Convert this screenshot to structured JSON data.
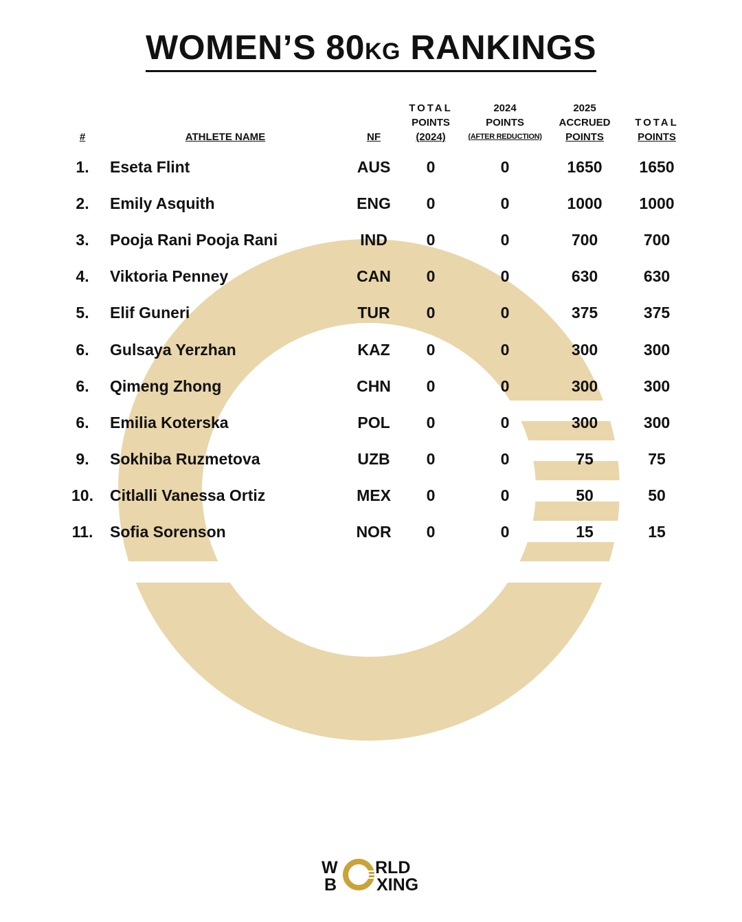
{
  "title": {
    "main": "WOMEN’S 80",
    "unit": "KG",
    "rest": " RANKINGS"
  },
  "headers": {
    "rank": "#",
    "athlete": "ATHLETE NAME",
    "nf": "NF",
    "total2024": [
      "TOTAL",
      "POINTS",
      "(2024)"
    ],
    "points2024": [
      "2024",
      "POINTS",
      "(AFTER REDUCTION)"
    ],
    "accrued2025": [
      "2025",
      "ACCRUED",
      "POINTS"
    ],
    "total": [
      "TOTAL",
      "POINTS"
    ]
  },
  "rows": [
    {
      "rank": "1.",
      "name": "Eseta Flint",
      "nf": "AUS",
      "total2024": "0",
      "points2024": "0",
      "accrued2025": "1650",
      "total": "1650"
    },
    {
      "rank": "2.",
      "name": "Emily Asquith",
      "nf": "ENG",
      "total2024": "0",
      "points2024": "0",
      "accrued2025": "1000",
      "total": "1000"
    },
    {
      "rank": "3.",
      "name": "Pooja Rani Pooja Rani",
      "nf": "IND",
      "total2024": "0",
      "points2024": "0",
      "accrued2025": "700",
      "total": "700"
    },
    {
      "rank": "4.",
      "name": "Viktoria Penney",
      "nf": "CAN",
      "total2024": "0",
      "points2024": "0",
      "accrued2025": "630",
      "total": "630"
    },
    {
      "rank": "5.",
      "name": "Elif Guneri",
      "nf": "TUR",
      "total2024": "0",
      "points2024": "0",
      "accrued2025": "375",
      "total": "375"
    },
    {
      "rank": "6.",
      "name": "Gulsaya Yerzhan",
      "nf": "KAZ",
      "total2024": "0",
      "points2024": "0",
      "accrued2025": "300",
      "total": "300"
    },
    {
      "rank": "6.",
      "name": "Qimeng Zhong",
      "nf": "CHN",
      "total2024": "0",
      "points2024": "0",
      "accrued2025": "300",
      "total": "300"
    },
    {
      "rank": "6.",
      "name": "Emilia Koterska",
      "nf": "POL",
      "total2024": "0",
      "points2024": "0",
      "accrued2025": "300",
      "total": "300"
    },
    {
      "rank": "9.",
      "name": "Sokhiba Ruzmetova",
      "nf": "UZB",
      "total2024": "0",
      "points2024": "0",
      "accrued2025": "75",
      "total": "75"
    },
    {
      "rank": "10.",
      "name": "Citlalli Vanessa Ortiz",
      "nf": "MEX",
      "total2024": "0",
      "points2024": "0",
      "accrued2025": "50",
      "total": "50"
    },
    {
      "rank": "11.",
      "name": "Sofia Sorenson",
      "nf": "NOR",
      "total2024": "0",
      "points2024": "0",
      "accrued2025": "15",
      "total": "15"
    }
  ],
  "logo": {
    "line1": "WORLD",
    "line2": "BOXING"
  },
  "colors": {
    "ring": "#e9d6aa",
    "logo_gold": "#c9a23a",
    "text": "#111111"
  }
}
